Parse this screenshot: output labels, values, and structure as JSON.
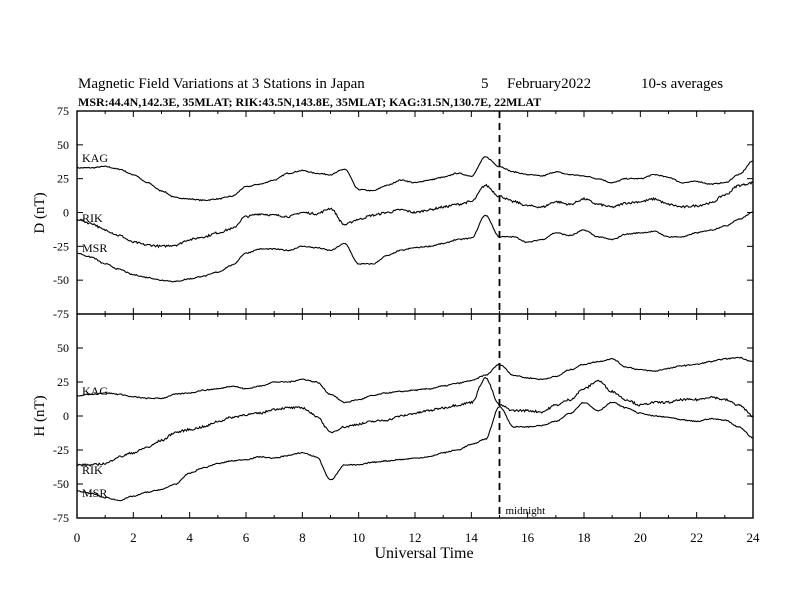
{
  "chart_data": [
    {
      "type": "line",
      "header": {
        "title": "Magnetic Field Variations at 3 Stations in Japan",
        "date_day": "5",
        "date_month_year": "February2022",
        "averaging": "10-s averages",
        "stations_line": "MSR:44.4N,142.3E, 35MLAT;  RIK:43.5N,143.8E, 35MLAT;  KAG:31.5N,130.7E, 22MLAT"
      },
      "ylabel": "D (nT)",
      "ylim": [
        -75,
        75
      ],
      "yticks": [
        -75,
        -50,
        -25,
        0,
        25,
        50,
        75
      ],
      "xlim": [
        0,
        24
      ],
      "series": [
        {
          "name": "KAG",
          "x": [
            0,
            0.5,
            1,
            1.5,
            2,
            2.5,
            3,
            3.5,
            4,
            4.5,
            5,
            5.5,
            6,
            6.5,
            7,
            7.5,
            8,
            8.5,
            9,
            9.5,
            10,
            10.5,
            11,
            11.5,
            12,
            12.5,
            13,
            13.5,
            14,
            14.5,
            15,
            15.5,
            16,
            16.5,
            17,
            17.5,
            18,
            18.5,
            19,
            19.5,
            20,
            20.5,
            21,
            21.5,
            22,
            22.5,
            23,
            23.5,
            24
          ],
          "values": [
            33,
            33,
            34,
            32,
            28,
            22,
            16,
            11,
            10,
            9,
            10,
            12,
            19,
            21,
            24,
            29,
            31,
            29,
            28,
            32,
            17,
            16,
            20,
            24,
            22,
            24,
            26,
            29,
            27,
            41,
            34,
            30,
            28,
            27,
            30,
            28,
            27,
            25,
            22,
            25,
            25,
            28,
            26,
            22,
            23,
            21,
            22,
            28,
            38
          ]
        },
        {
          "name": "RIK",
          "x": [
            0,
            0.5,
            1,
            1.5,
            2,
            2.5,
            3,
            3.5,
            4,
            4.5,
            5,
            5.5,
            6,
            6.5,
            7,
            7.5,
            8,
            8.5,
            9,
            9.5,
            10,
            10.5,
            11,
            11.5,
            12,
            12.5,
            13,
            13.5,
            14,
            14.5,
            15,
            15.5,
            16,
            16.5,
            17,
            17.5,
            18,
            18.5,
            19,
            19.5,
            20,
            20.5,
            21,
            21.5,
            22,
            22.5,
            23,
            23.5,
            24
          ],
          "values": [
            -5,
            -8,
            -13,
            -17,
            -22,
            -24,
            -25,
            -24,
            -20,
            -18,
            -15,
            -12,
            -3,
            -1,
            -2,
            -3,
            0,
            -1,
            3,
            -9,
            -5,
            -2,
            0,
            2,
            0,
            2,
            4,
            6,
            8,
            20,
            12,
            8,
            5,
            4,
            8,
            6,
            10,
            6,
            4,
            7,
            8,
            10,
            6,
            4,
            5,
            7,
            13,
            20,
            22
          ]
        },
        {
          "name": "MSR",
          "x": [
            0,
            0.5,
            1,
            1.5,
            2,
            2.5,
            3,
            3.5,
            4,
            4.5,
            5,
            5.5,
            6,
            6.5,
            7,
            7.5,
            8,
            8.5,
            9,
            9.5,
            10,
            10.5,
            11,
            11.5,
            12,
            12.5,
            13,
            13.5,
            14,
            14.5,
            15,
            15.5,
            16,
            16.5,
            17,
            17.5,
            18,
            18.5,
            19,
            19.5,
            20,
            20.5,
            21,
            21.5,
            22,
            22.5,
            23,
            23.5,
            24
          ],
          "values": [
            -30,
            -33,
            -38,
            -42,
            -46,
            -48,
            -50,
            -51,
            -49,
            -47,
            -44,
            -39,
            -30,
            -27,
            -27,
            -28,
            -25,
            -26,
            -28,
            -23,
            -38,
            -38,
            -32,
            -28,
            -26,
            -25,
            -23,
            -20,
            -19,
            -2,
            -18,
            -18,
            -22,
            -20,
            -15,
            -17,
            -13,
            -18,
            -20,
            -16,
            -15,
            -14,
            -18,
            -18,
            -15,
            -13,
            -10,
            -5,
            0
          ]
        }
      ],
      "grid": false
    },
    {
      "type": "line",
      "ylabel": "H (nT)",
      "xlabel": "Universal Time",
      "ylim": [
        -75,
        75
      ],
      "yticks": [
        -75,
        -50,
        -25,
        0,
        25,
        50
      ],
      "xlim": [
        0,
        24
      ],
      "xticks": [
        0,
        2,
        4,
        6,
        8,
        10,
        12,
        14,
        16,
        18,
        20,
        22,
        24
      ],
      "annotation": {
        "text": "midnight",
        "x": 15
      },
      "series": [
        {
          "name": "KAG",
          "x": [
            0,
            0.5,
            1,
            1.5,
            2,
            2.5,
            3,
            3.5,
            4,
            4.5,
            5,
            5.5,
            6,
            6.5,
            7,
            7.5,
            8,
            8.5,
            9,
            9.5,
            10,
            10.5,
            11,
            11.5,
            12,
            12.5,
            13,
            13.5,
            14,
            14.5,
            15,
            15.5,
            16,
            16.5,
            17,
            17.5,
            18,
            18.5,
            19,
            19.5,
            20,
            20.5,
            21,
            21.5,
            22,
            22.5,
            23,
            23.5,
            24
          ],
          "values": [
            15,
            16,
            17,
            16,
            14,
            13,
            13,
            16,
            17,
            19,
            20,
            22,
            20,
            22,
            25,
            25,
            27,
            25,
            16,
            10,
            12,
            15,
            17,
            18,
            19,
            20,
            22,
            24,
            26,
            30,
            38,
            30,
            28,
            27,
            29,
            34,
            38,
            40,
            42,
            36,
            34,
            33,
            35,
            37,
            38,
            40,
            42,
            43,
            40
          ]
        },
        {
          "name": "RIK",
          "x": [
            0,
            0.5,
            1,
            1.5,
            2,
            2.5,
            3,
            3.5,
            4,
            4.5,
            5,
            5.5,
            6,
            6.5,
            7,
            7.5,
            8,
            8.5,
            9,
            9.5,
            10,
            10.5,
            11,
            11.5,
            12,
            12.5,
            13,
            13.5,
            14,
            14.5,
            15,
            15.5,
            16,
            16.5,
            17,
            17.5,
            18,
            18.5,
            19,
            19.5,
            20,
            20.5,
            21,
            21.5,
            22,
            22.5,
            23,
            23.5,
            24
          ],
          "values": [
            -36,
            -36,
            -35,
            -30,
            -27,
            -23,
            -18,
            -12,
            -10,
            -8,
            -4,
            -1,
            1,
            2,
            5,
            6,
            6,
            0,
            -12,
            -8,
            -6,
            -4,
            -3,
            0,
            2,
            4,
            6,
            8,
            10,
            28,
            8,
            4,
            4,
            3,
            8,
            12,
            20,
            26,
            18,
            12,
            8,
            10,
            10,
            12,
            12,
            14,
            12,
            8,
            0
          ]
        },
        {
          "name": "MSR",
          "x": [
            0,
            0.5,
            1,
            1.5,
            2,
            2.5,
            3,
            3.5,
            4,
            4.5,
            5,
            5.5,
            6,
            6.5,
            7,
            7.5,
            8,
            8.5,
            9,
            9.5,
            10,
            10.5,
            11,
            11.5,
            12,
            12.5,
            13,
            13.5,
            14,
            14.5,
            15,
            15.5,
            16,
            16.5,
            17,
            17.5,
            18,
            18.5,
            19,
            19.5,
            20,
            20.5,
            21,
            21.5,
            22,
            22.5,
            23,
            23.5,
            24
          ],
          "values": [
            -55,
            -57,
            -60,
            -62,
            -59,
            -56,
            -54,
            -50,
            -42,
            -38,
            -35,
            -33,
            -32,
            -30,
            -31,
            -29,
            -27,
            -30,
            -47,
            -36,
            -36,
            -34,
            -33,
            -32,
            -31,
            -30,
            -27,
            -25,
            -21,
            -17,
            7,
            -8,
            -8,
            -7,
            -4,
            2,
            10,
            4,
            10,
            6,
            2,
            0,
            -1,
            -3,
            -4,
            -2,
            -3,
            -8,
            -16
          ]
        }
      ],
      "grid": false
    }
  ]
}
